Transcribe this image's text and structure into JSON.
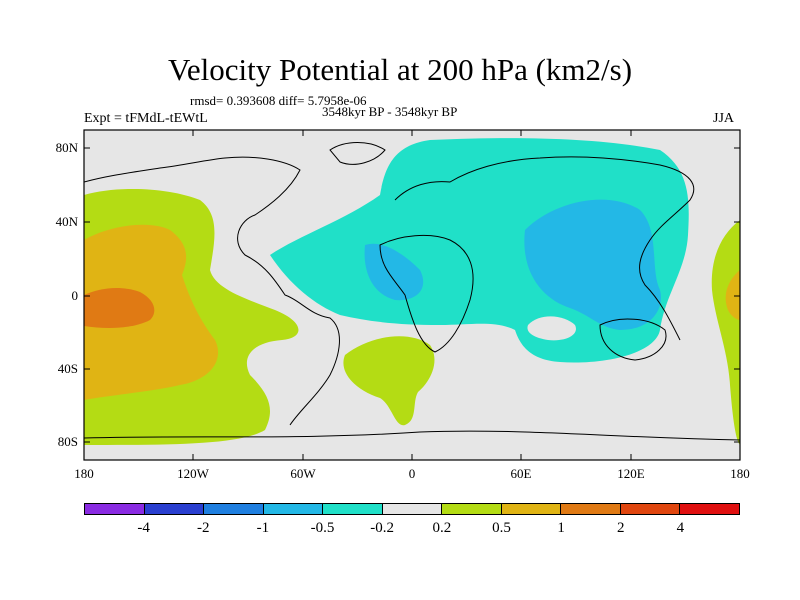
{
  "title": "Velocity Potential at 200 hPa (km2/s)",
  "stats": "rmsd= 0.393608 diff= 5.7958e-06",
  "experiment": "Expt = tFMdL-tEWtL",
  "period": "3548kyr BP - 3548kyr BP",
  "season": "JJA",
  "lat_ticks": [
    "80N",
    "40N",
    "0",
    "40S",
    "80S"
  ],
  "lon_ticks": [
    "180",
    "120W",
    "60W",
    "0",
    "60E",
    "120E",
    "180"
  ],
  "colorbar": {
    "labels": [
      "-4",
      "-2",
      "-1",
      "-0.5",
      "-0.2",
      "0.2",
      "0.5",
      "1",
      "2",
      "4"
    ],
    "colors": [
      "#8a2be2",
      "#2a3fd0",
      "#1f7fe0",
      "#23b8e6",
      "#20e0c8",
      "#e6e6e6",
      "#b4dc14",
      "#e0b414",
      "#e07a14",
      "#e0460f",
      "#e01010"
    ]
  },
  "shading": {
    "background": "#e6e6e6",
    "neg_light": "#20e0c8",
    "neg_mid": "#23b8e6",
    "pos_light": "#b4dc14",
    "pos_mid": "#e0b414",
    "pos_strong": "#e07a14"
  }
}
